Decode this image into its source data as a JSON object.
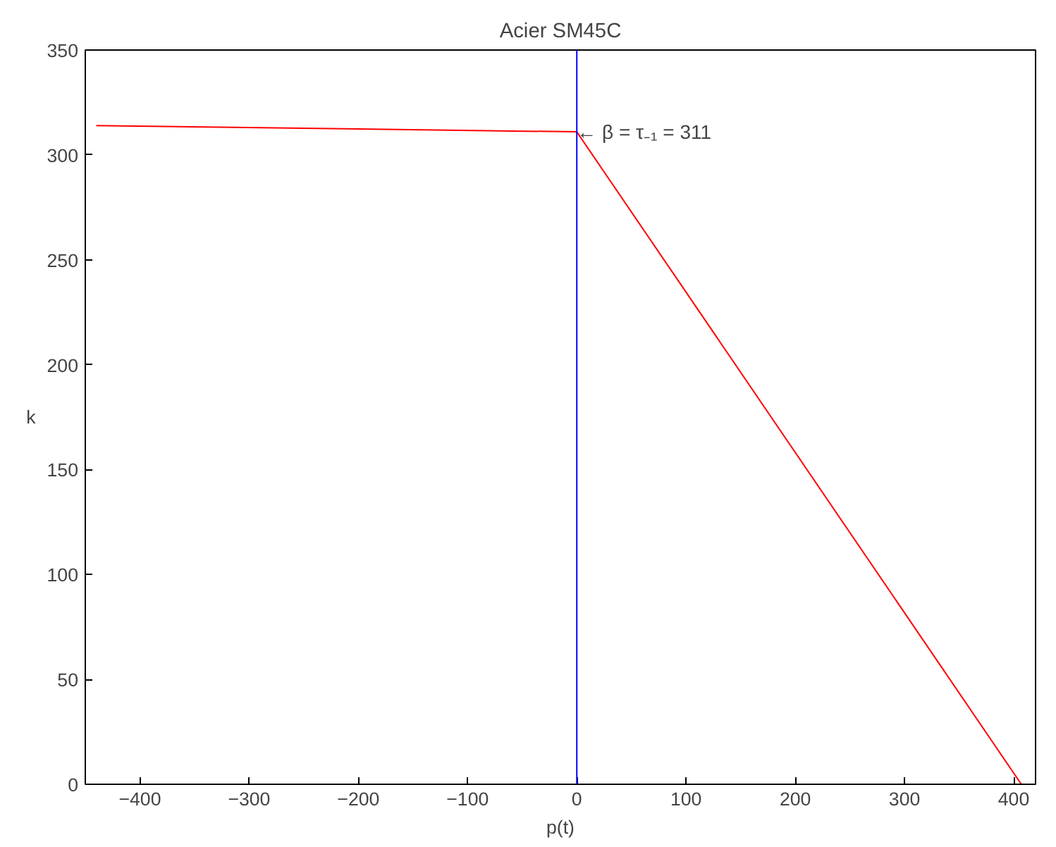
{
  "chart_data": {
    "type": "line",
    "title": "Acier SM45C",
    "xlabel": "p(t)",
    "ylabel": "k",
    "x": [
      -440,
      0,
      407
    ],
    "series": [
      {
        "color": "#ff0000",
        "values": [
          314,
          311,
          0
        ]
      }
    ],
    "xlim": [
      -450,
      420
    ],
    "ylim": [
      0,
      350
    ],
    "xticks": [
      {
        "value": -400,
        "label": "−400"
      },
      {
        "value": -300,
        "label": "−300"
      },
      {
        "value": -200,
        "label": "−200"
      },
      {
        "value": -100,
        "label": "−100"
      },
      0,
      100,
      200,
      300,
      400
    ],
    "yticks": [
      0,
      50,
      100,
      150,
      200,
      250,
      300,
      350
    ],
    "ref_lines": [
      {
        "axis": "x",
        "value": 0,
        "color": "#0000ff"
      }
    ],
    "annotations": [
      {
        "text": "← β = τ₋₁ = 311",
        "x": 0,
        "y": 311
      }
    ],
    "grid": false,
    "marker": "none",
    "line_style": "solid"
  }
}
